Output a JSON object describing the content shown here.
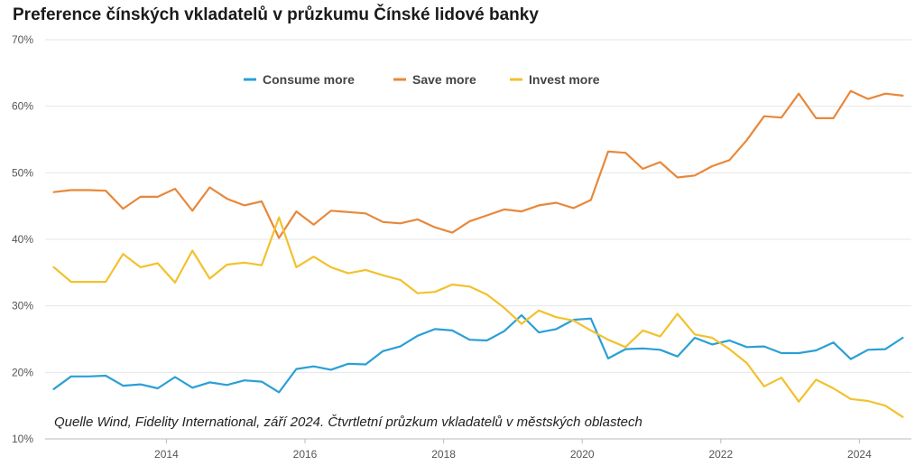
{
  "chart_data": {
    "type": "line",
    "title": "Preference čínských vkladatelů v průzkumu Čínské lidové banky",
    "source": "Quelle Wind, Fidelity International, září 2024. Čtvrtletní průzkum vkladatelů v městských oblastech",
    "xlim": [
      2012.25,
      2024.75
    ],
    "ylim": [
      10,
      70
    ],
    "y_ticks": [
      10,
      20,
      30,
      40,
      50,
      60,
      70
    ],
    "y_tick_suffix": "%",
    "x_ticks": [
      2014,
      2016,
      2018,
      2020,
      2022,
      2024
    ],
    "legend_position": "top-center",
    "grid": true,
    "x": [
      2012.375,
      2012.625,
      2012.875,
      2013.125,
      2013.375,
      2013.625,
      2013.875,
      2014.125,
      2014.375,
      2014.625,
      2014.875,
      2015.125,
      2015.375,
      2015.625,
      2015.875,
      2016.125,
      2016.375,
      2016.625,
      2016.875,
      2017.125,
      2017.375,
      2017.625,
      2017.875,
      2018.125,
      2018.375,
      2018.625,
      2018.875,
      2019.125,
      2019.375,
      2019.625,
      2019.875,
      2020.125,
      2020.375,
      2020.625,
      2020.875,
      2021.125,
      2021.375,
      2021.625,
      2021.875,
      2022.125,
      2022.375,
      2022.625,
      2022.875,
      2023.125,
      2023.375,
      2023.625,
      2023.875,
      2024.125,
      2024.375,
      2024.625
    ],
    "series": [
      {
        "name": "Consume more",
        "color": "#2a9fd6",
        "values": [
          17.5,
          19.4,
          19.4,
          19.5,
          18.0,
          18.2,
          17.6,
          19.3,
          17.7,
          18.5,
          18.1,
          18.8,
          18.6,
          17.0,
          20.5,
          20.9,
          20.4,
          21.3,
          21.2,
          23.2,
          23.9,
          25.5,
          26.5,
          26.3,
          24.9,
          24.8,
          26.2,
          28.6,
          26.0,
          26.5,
          27.9,
          28.1,
          22.1,
          23.5,
          23.6,
          23.4,
          22.4,
          25.2,
          24.2,
          24.8,
          23.8,
          23.9,
          22.9,
          22.9,
          23.3,
          24.5,
          22.0,
          23.4,
          23.5,
          25.2
        ]
      },
      {
        "name": "Save more",
        "color": "#e8883a",
        "values": [
          47.1,
          47.4,
          47.4,
          47.3,
          44.6,
          46.4,
          46.4,
          47.6,
          44.3,
          47.8,
          46.1,
          45.1,
          45.7,
          40.2,
          44.2,
          42.2,
          44.3,
          44.1,
          43.9,
          42.6,
          42.4,
          43.0,
          41.8,
          41.0,
          42.7,
          43.6,
          44.5,
          44.2,
          45.1,
          45.5,
          44.7,
          45.9,
          53.2,
          53.0,
          50.6,
          51.6,
          49.3,
          49.6,
          51.0,
          51.9,
          54.9,
          58.5,
          58.3,
          61.9,
          58.2,
          58.2,
          62.3,
          61.1,
          61.9,
          61.6
        ]
      },
      {
        "name": "Invest more",
        "color": "#f3c12e",
        "values": [
          35.8,
          33.6,
          33.6,
          33.6,
          37.8,
          35.8,
          36.4,
          33.5,
          38.3,
          34.1,
          36.2,
          36.5,
          36.1,
          43.3,
          35.8,
          37.4,
          35.8,
          34.9,
          35.4,
          34.6,
          33.9,
          31.9,
          32.1,
          33.2,
          32.9,
          31.7,
          29.7,
          27.3,
          29.3,
          28.3,
          27.8,
          26.3,
          24.9,
          23.8,
          26.3,
          25.4,
          28.8,
          25.7,
          25.2,
          23.5,
          21.4,
          17.9,
          19.2,
          15.6,
          18.9,
          17.6,
          16.0,
          15.7,
          15.0,
          13.3
        ]
      }
    ]
  }
}
